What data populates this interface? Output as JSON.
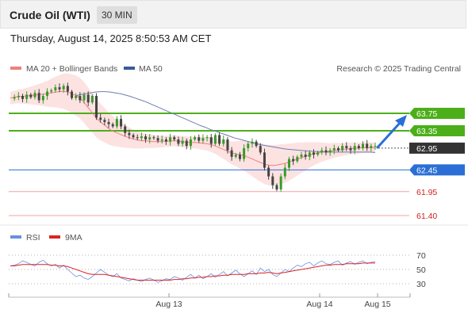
{
  "header": {
    "title": "Crude Oil (WTI)",
    "timeframe": "30 MIN"
  },
  "datetime": "Thursday, August 14, 2025 8:50:53 AM CET",
  "legend": {
    "ma20_label": "MA 20 + Bollinger Bands",
    "ma50_label": "MA 50",
    "credit": "Research © 2025 Trading Central"
  },
  "rsi_legend": {
    "rsi_label": "RSI",
    "ma_label": "9MA"
  },
  "colors": {
    "resistance": "#4caf1a",
    "support_current": "#2b6fd6",
    "support_low": "#f4a0a0",
    "support_label_text": "#cc2222",
    "up_candle": "#3a9a2a",
    "down_candle": "#444444",
    "ma20": "#f08080",
    "ma50": "#6a7fb0",
    "band_fill": "#fde2e2",
    "current_tag": "#333333",
    "rsi_line": "#6a8fe0",
    "rsi_ma": "#dd2222",
    "arrow": "#2b6fd6"
  },
  "chart_data": [
    {
      "type": "candlestick",
      "x_ticks": [
        "Aug 13",
        "Aug 14",
        "Aug 15"
      ],
      "ylim": [
        61.2,
        64.4
      ],
      "current_price": 62.95,
      "levels": [
        {
          "value": 63.75,
          "label": "63.75",
          "kind": "resistance"
        },
        {
          "value": 63.35,
          "label": "63.35",
          "kind": "resistance"
        },
        {
          "value": 62.95,
          "label": "62.95",
          "kind": "current"
        },
        {
          "value": 62.45,
          "label": "62.45",
          "kind": "support-current"
        },
        {
          "value": 61.95,
          "label": "61.95",
          "kind": "support"
        },
        {
          "value": 61.4,
          "label": "61.40",
          "kind": "support"
        }
      ],
      "close": [
        64.09,
        64.12,
        64.15,
        64.08,
        64.18,
        64.12,
        64.22,
        64.05,
        64.15,
        64.25,
        64.28,
        64.35,
        64.3,
        64.38,
        64.25,
        64.1,
        64.15,
        64.05,
        64.18,
        64.0,
        64.15,
        63.65,
        63.6,
        63.55,
        63.5,
        63.45,
        63.62,
        63.45,
        63.3,
        63.25,
        63.2,
        63.18,
        63.22,
        63.15,
        63.2,
        63.18,
        63.12,
        63.15,
        63.1,
        63.2,
        63.15,
        63.05,
        63.12,
        63.0,
        63.15,
        63.2,
        63.12,
        63.18,
        63.2,
        63.05,
        63.25,
        63.05,
        63.15,
        62.9,
        62.75,
        62.8,
        62.7,
        62.95,
        63.05,
        63.1,
        63.0,
        62.85,
        62.5,
        62.3,
        62.1,
        62.0,
        62.3,
        62.5,
        62.7,
        62.65,
        62.75,
        62.8,
        62.75,
        62.85,
        62.8,
        62.85,
        62.9,
        62.85,
        62.9,
        62.95,
        62.9,
        63.0,
        62.95,
        62.9,
        63.0,
        62.95,
        63.05,
        62.95,
        63.0,
        63.0
      ],
      "ma20": [
        64.1,
        64.12,
        64.14,
        64.14,
        64.15,
        64.16,
        64.17,
        64.18,
        64.19,
        64.2,
        64.22,
        64.24,
        64.25,
        64.26,
        64.24,
        64.2,
        64.16,
        64.1,
        64.0,
        63.88,
        63.76,
        63.64,
        63.55,
        63.48,
        63.4,
        63.34,
        63.3,
        63.26,
        63.22,
        63.19,
        63.16,
        63.14,
        63.12,
        63.12,
        63.11,
        63.1,
        63.1,
        63.1,
        63.11,
        63.11,
        63.12,
        63.11,
        63.1,
        63.09,
        63.08,
        63.08,
        63.07,
        63.06,
        63.05,
        63.03,
        63.0,
        62.96,
        62.92,
        62.88,
        62.84,
        62.82,
        62.8,
        62.78,
        62.74,
        62.7,
        62.66,
        62.62,
        62.58,
        62.56,
        62.55,
        62.56,
        62.58,
        62.6,
        62.63,
        62.66,
        62.7,
        62.73,
        62.76,
        62.79,
        62.82,
        62.84,
        62.86,
        62.87,
        62.88,
        62.9,
        62.91,
        62.92,
        62.93,
        62.94,
        62.95,
        62.95,
        62.96,
        62.96,
        62.96,
        62.96
      ],
      "ma50": [
        64.15,
        64.18,
        64.2,
        64.22,
        64.24,
        64.25,
        64.25,
        64.24,
        64.22,
        64.2,
        64.17,
        64.14,
        64.1,
        64.06,
        64.02,
        63.97,
        63.92,
        63.87,
        63.82,
        63.77,
        63.72,
        63.67,
        63.62,
        63.57,
        63.52,
        63.47,
        63.43,
        63.38,
        63.34,
        63.3,
        63.26,
        63.22,
        63.18,
        63.15,
        63.12,
        63.09,
        63.06,
        63.03,
        63.01,
        62.99,
        62.97,
        62.95,
        62.93,
        62.92,
        62.91,
        62.9,
        62.89,
        62.88,
        62.87,
        62.87,
        62.86,
        62.86,
        62.86,
        62.86,
        62.86,
        62.86,
        62.86,
        62.86,
        62.86,
        62.86,
        62.85
      ],
      "band_upper_max": 64.6,
      "band_lower_min": 61.95
    },
    {
      "type": "line",
      "name": "RSI",
      "y_ticks": [
        70,
        50,
        30
      ],
      "ylim": [
        20,
        80
      ],
      "rsi": [
        55,
        56,
        58,
        62,
        60,
        57,
        55,
        60,
        63,
        58,
        55,
        57,
        52,
        56,
        50,
        45,
        40,
        42,
        38,
        36,
        40,
        45,
        50,
        46,
        42,
        40,
        44,
        38,
        36,
        34,
        37,
        35,
        33,
        36,
        38,
        35,
        32,
        34,
        37,
        36,
        40,
        38,
        35,
        39,
        43,
        38,
        42,
        37,
        40,
        44,
        39,
        43,
        47,
        41,
        45,
        49,
        44,
        40,
        44,
        48,
        43,
        52,
        47,
        50,
        43,
        40,
        45,
        50,
        47,
        52,
        56,
        54,
        58,
        60,
        55,
        59,
        62,
        58,
        57,
        60,
        62,
        56,
        59,
        61,
        57,
        60,
        62,
        58,
        60,
        61
      ],
      "rsi_ma": [
        55,
        55,
        56,
        57,
        57,
        57,
        57,
        57,
        57,
        57,
        56,
        56,
        55,
        55,
        54,
        52,
        50,
        48,
        46,
        44,
        43,
        43,
        43,
        43,
        42,
        41,
        40,
        39,
        38,
        37,
        36,
        35,
        35,
        35,
        35,
        35,
        35,
        35,
        35,
        35,
        36,
        36,
        37,
        37,
        38,
        38,
        39,
        39,
        40,
        40,
        41,
        41,
        42,
        42,
        43,
        43,
        43,
        43,
        44,
        44,
        44,
        45,
        45,
        46,
        45,
        44,
        45,
        46,
        47,
        48,
        49,
        50,
        51,
        52,
        53,
        54,
        55,
        56,
        56,
        57,
        57,
        57,
        58,
        58,
        58,
        58,
        59,
        59,
        59,
        59
      ]
    }
  ]
}
